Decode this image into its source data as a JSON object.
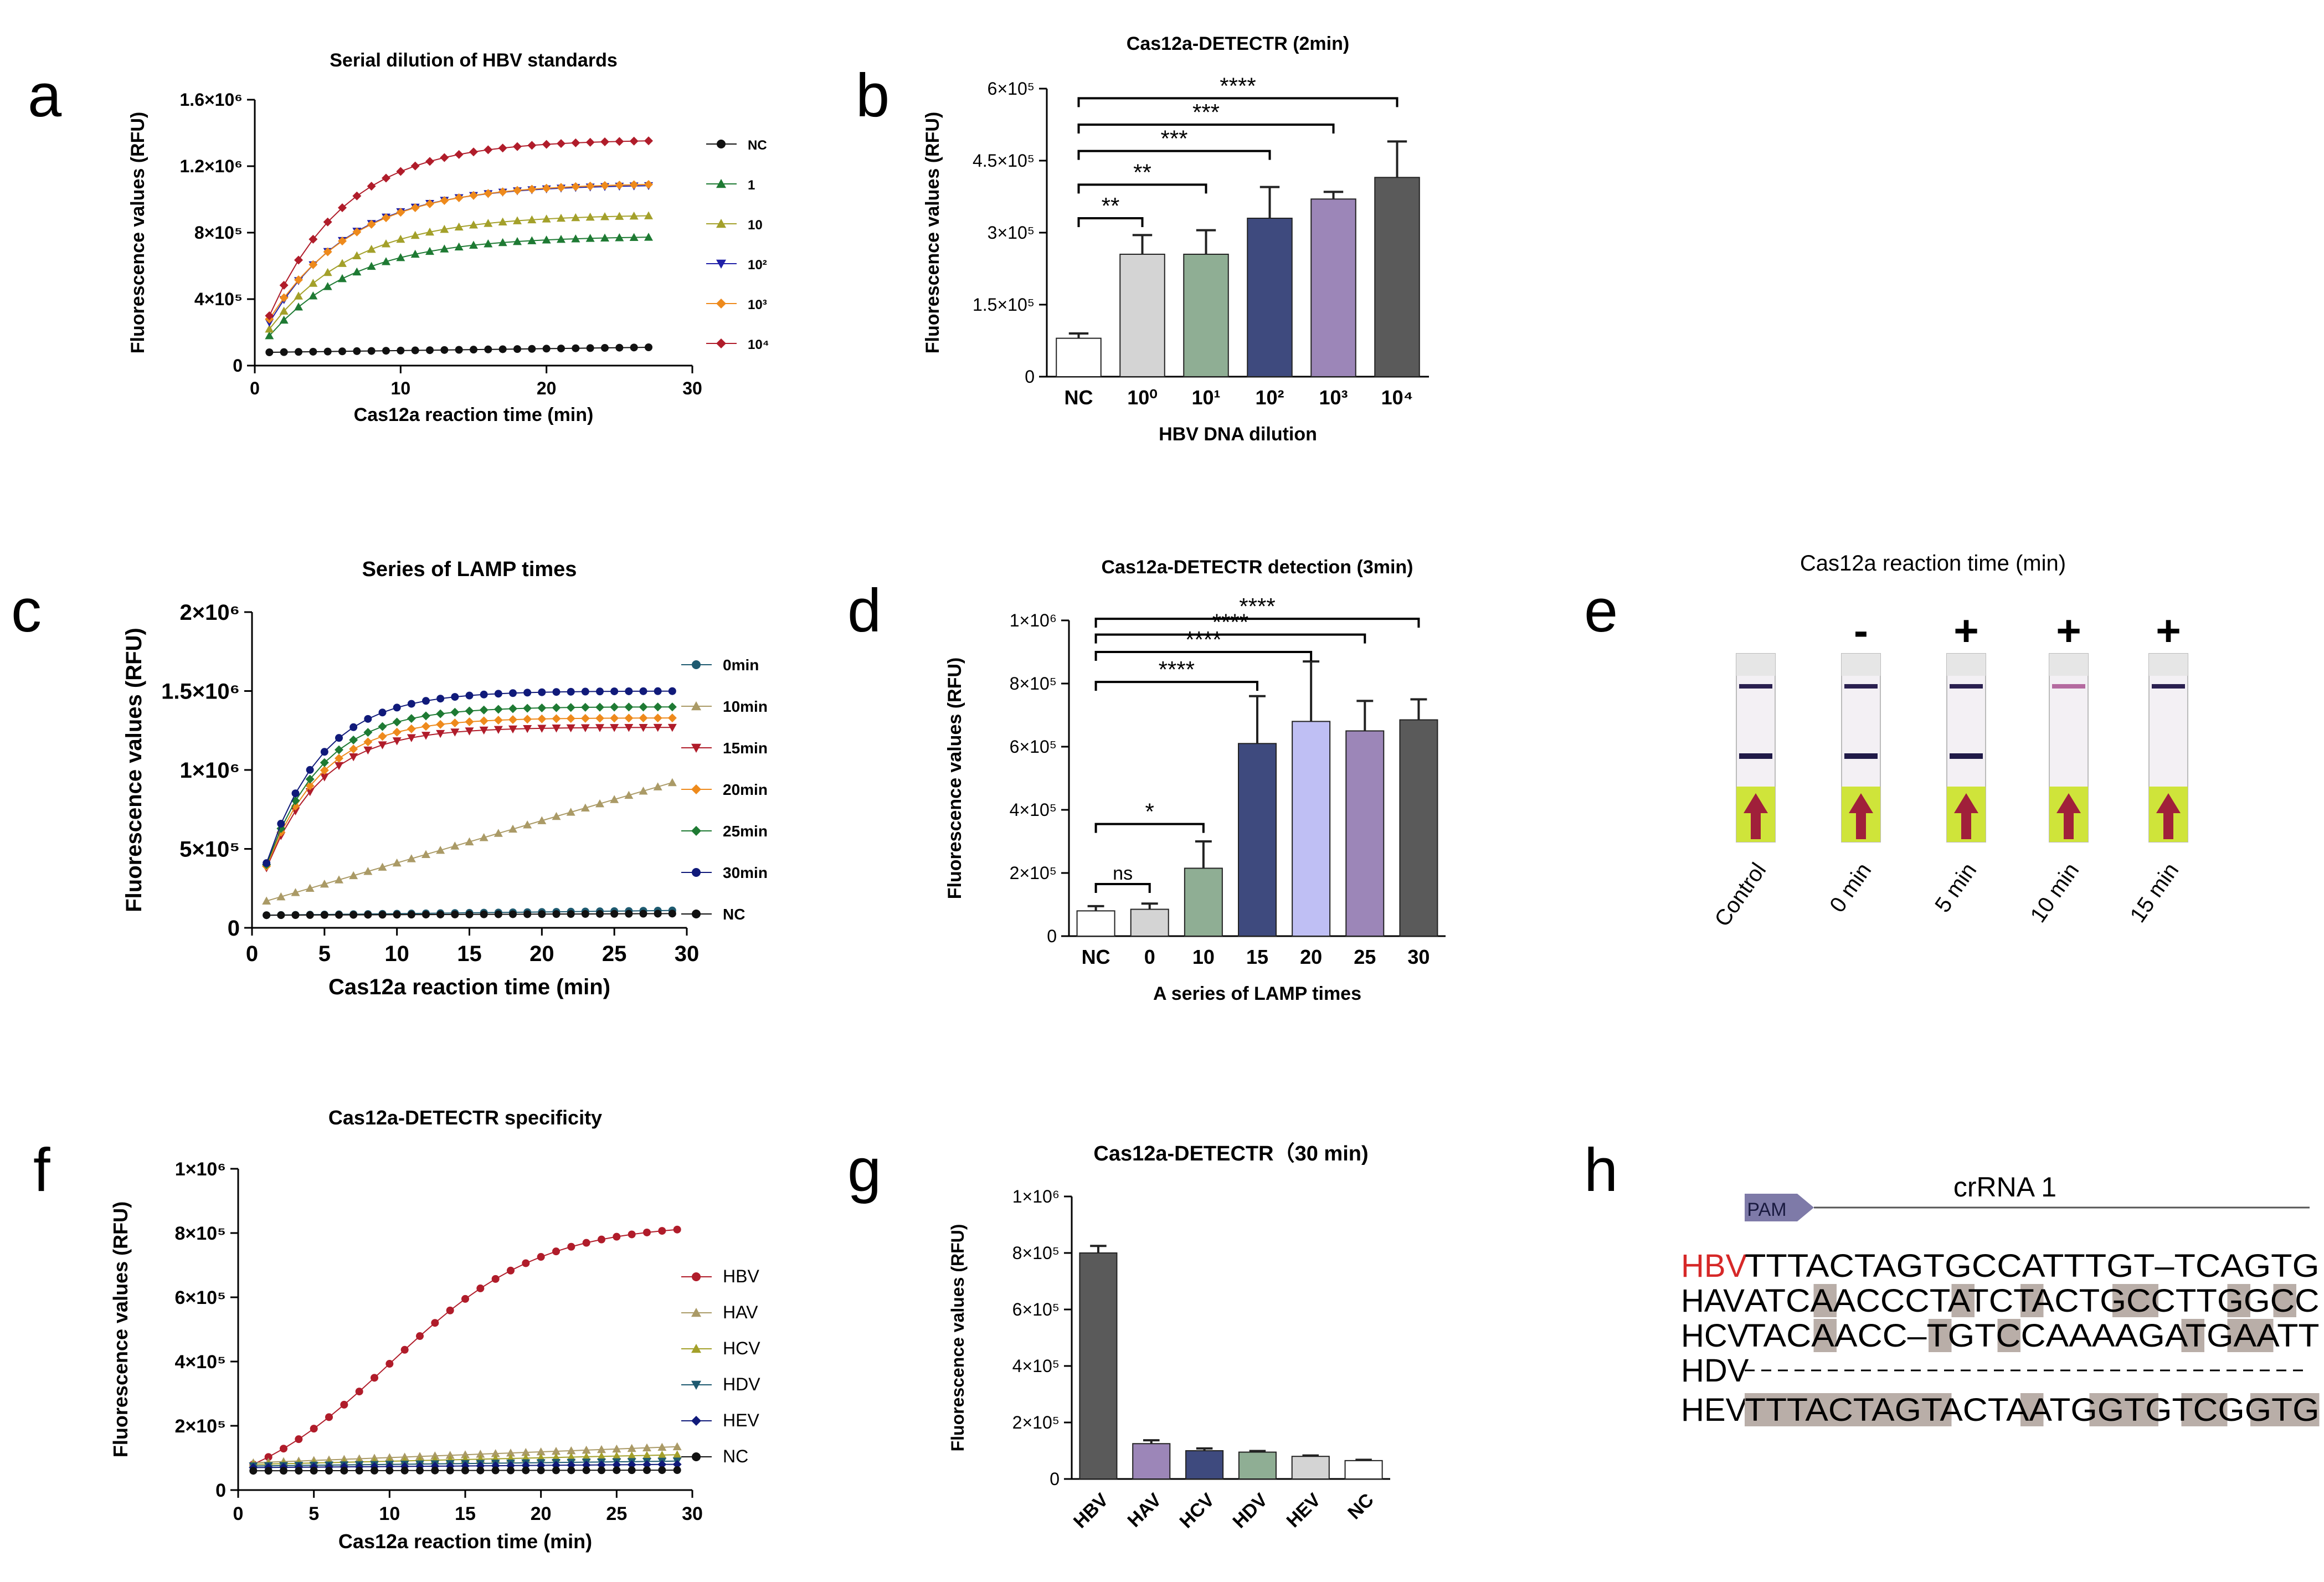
{
  "panel_letters": [
    "a",
    "b",
    "c",
    "d",
    "e",
    "f",
    "g",
    "h"
  ],
  "superscripts": {
    "0": "⁰",
    "1": "¹",
    "2": "²",
    "3": "³",
    "4": "⁴",
    "5": "⁵",
    "6": "⁶"
  },
  "colors": {
    "black": "#111111",
    "green": "#1e7a33",
    "olive": "#a3a02a",
    "blue": "#2020a8",
    "orange": "#ee8a1c",
    "red": "#b01c2a",
    "navy": "#101a7a",
    "teal": "#1e5a70",
    "lgrey": "#d4d4d4",
    "sage": "#8fae94",
    "navyBar": "#3e4a7e",
    "purple": "#9c86b8",
    "dgrey": "#5a5a5a",
    "lav": "#bfbff4",
    "tan": "#aa9a66",
    "mid": "#2a2a6a"
  },
  "chart_data": [
    {
      "id": "a",
      "type": "line",
      "title": "Serial dilution of HBV standards",
      "xlabel": "Cas12a reaction time (min)",
      "ylabel": "Fluorescence values (RFU)",
      "xlim": [
        0,
        30
      ],
      "ylim": [
        0,
        1600000
      ],
      "xticks": [
        0,
        10,
        20,
        30
      ],
      "yticks": [
        0,
        400000,
        800000,
        1200000,
        1600000
      ],
      "ytick_labels": [
        "0",
        "4×10⁵",
        "8×10⁵",
        "1.2×10⁶",
        "1.6×10⁶"
      ],
      "legend_placement": "right",
      "series": [
        {
          "name": "NC",
          "legend": "NC",
          "marker": "circle",
          "color": "black",
          "start": 80000,
          "plateau": 110000,
          "k": 0.0
        },
        {
          "name": "1",
          "legend": "1",
          "marker": "triangle",
          "color": "green",
          "start": 180000,
          "plateau": 780000,
          "k": 0.17
        },
        {
          "name": "10",
          "legend": "10",
          "marker": "triangle",
          "color": "olive",
          "start": 220000,
          "plateau": 910000,
          "k": 0.17
        },
        {
          "name": "10^2",
          "legend": "10²",
          "marker": "triangle-down",
          "color": "blue",
          "start": 260000,
          "plateau": 1090000,
          "k": 0.18
        },
        {
          "name": "10^3",
          "legend": "10³",
          "marker": "diamond",
          "color": "orange",
          "start": 280000,
          "plateau": 1100000,
          "k": 0.17
        },
        {
          "name": "10^4",
          "legend": "10⁴",
          "marker": "diamond",
          "color": "red",
          "start": 300000,
          "plateau": 1360000,
          "k": 0.19
        }
      ]
    },
    {
      "id": "b",
      "type": "bar",
      "title": "Cas12a-DETECTR (2min)",
      "xlabel": "HBV DNA dilution",
      "ylabel": "Fluorescence values (RFU)",
      "ylim": [
        0,
        600000
      ],
      "yticks": [
        0,
        150000,
        300000,
        450000,
        600000
      ],
      "ytick_labels": [
        "0",
        "1.5×10⁵",
        "3×10⁵",
        "4.5×10⁵",
        "6×10⁵"
      ],
      "categories": [
        "NC",
        "10^0",
        "10^1",
        "10^2",
        "10^3",
        "10^4"
      ],
      "category_labels": [
        "NC",
        "10⁰",
        "10¹",
        "10²",
        "10³",
        "10⁴"
      ],
      "values": [
        80000,
        255000,
        255000,
        330000,
        370000,
        415000
      ],
      "errors": [
        10000,
        40000,
        50000,
        65000,
        15000,
        75000
      ],
      "bar_colors": [
        "#ffffff",
        "lgrey",
        "sage",
        "navyBar",
        "purple",
        "dgrey"
      ],
      "significance": [
        {
          "from": 0,
          "to": 1,
          "label": "**",
          "y": 330000
        },
        {
          "from": 0,
          "to": 2,
          "label": "**",
          "y": 400000
        },
        {
          "from": 0,
          "to": 3,
          "label": "***",
          "y": 470000
        },
        {
          "from": 0,
          "to": 4,
          "label": "***",
          "y": 525000
        },
        {
          "from": 0,
          "to": 5,
          "label": "****",
          "y": 580000
        }
      ]
    },
    {
      "id": "c",
      "type": "line",
      "title": "Series of LAMP times",
      "xlabel": "Cas12a reaction time (min)",
      "ylabel": "Fluorescence values (RFU)",
      "xlim": [
        0,
        30
      ],
      "ylim": [
        0,
        2000000
      ],
      "xticks": [
        0,
        5,
        10,
        15,
        20,
        25,
        30
      ],
      "yticks": [
        0,
        500000,
        1000000,
        1500000,
        2000000
      ],
      "ytick_labels": [
        "0",
        "5×10⁵",
        "1×10⁶",
        "1.5×10⁶",
        "2×10⁶"
      ],
      "legend_placement": "right",
      "series": [
        {
          "name": "0min",
          "legend": "0min",
          "marker": "circle",
          "color": "teal",
          "start": 80000,
          "plateau": 110000,
          "k": 0.0
        },
        {
          "name": "10min",
          "legend": "10min",
          "marker": "triangle",
          "color": "tan",
          "start": 170000,
          "plateau": 920000,
          "k": -1
        },
        {
          "name": "15min",
          "legend": "15min",
          "marker": "triangle-down",
          "color": "red",
          "start": 380000,
          "plateau": 1270000,
          "k": 0.26
        },
        {
          "name": "20min",
          "legend": "20min",
          "marker": "diamond",
          "color": "orange",
          "start": 390000,
          "plateau": 1330000,
          "k": 0.26
        },
        {
          "name": "25min",
          "legend": "25min",
          "marker": "diamond",
          "color": "green",
          "start": 400000,
          "plateau": 1400000,
          "k": 0.26
        },
        {
          "name": "30min",
          "legend": "30min",
          "marker": "circle",
          "color": "navy",
          "start": 410000,
          "plateau": 1500000,
          "k": 0.26
        },
        {
          "name": "NC",
          "legend": "NC",
          "marker": "circle",
          "color": "black",
          "start": 80000,
          "plateau": 90000,
          "k": 0.0
        }
      ]
    },
    {
      "id": "d",
      "type": "bar",
      "title": "Cas12a-DETECTR detection (3min)",
      "xlabel": "A series of LAMP times",
      "ylabel": "Fluorescence values (RFU)",
      "ylim": [
        0,
        1000000
      ],
      "yticks": [
        0,
        200000,
        400000,
        600000,
        800000,
        1000000
      ],
      "ytick_labels": [
        "0",
        "2×10⁵",
        "4×10⁵",
        "6×10⁵",
        "8×10⁵",
        "1×10⁶"
      ],
      "categories": [
        "NC",
        "0",
        "10",
        "15",
        "20",
        "25",
        "30"
      ],
      "category_labels": [
        "NC",
        "0",
        "10",
        "15",
        "20",
        "25",
        "30"
      ],
      "values": [
        80000,
        85000,
        215000,
        610000,
        680000,
        650000,
        685000
      ],
      "errors": [
        15000,
        18000,
        85000,
        150000,
        190000,
        95000,
        65000
      ],
      "bar_colors": [
        "#ffffff",
        "lgrey",
        "sage",
        "navyBar",
        "lav",
        "purple",
        "dgrey"
      ],
      "significance": [
        {
          "from": 0,
          "to": 1,
          "label": "ns",
          "y": 165000
        },
        {
          "from": 0,
          "to": 2,
          "label": "*",
          "y": 355000
        },
        {
          "from": 0,
          "to": 3,
          "label": "****",
          "y": 805000
        },
        {
          "from": 0,
          "to": 4,
          "label": "****",
          "y": 900000
        },
        {
          "from": 0,
          "to": 5,
          "label": "****",
          "y": 955000
        },
        {
          "from": 0,
          "to": 6,
          "label": "****",
          "y": 1005000
        }
      ]
    },
    {
      "id": "f",
      "type": "line",
      "title": "Cas12a-DETECTR specificity",
      "xlabel": "Cas12a reaction time (min)",
      "ylabel": "Fluorescence values (RFU)",
      "xlim": [
        0,
        30
      ],
      "ylim": [
        0,
        1000000
      ],
      "xticks": [
        0,
        5,
        10,
        15,
        20,
        25,
        30
      ],
      "yticks": [
        0,
        200000,
        400000,
        600000,
        800000,
        1000000
      ],
      "ytick_labels": [
        "0",
        "2×10⁵",
        "4×10⁵",
        "6×10⁵",
        "8×10⁵",
        "1×10⁶"
      ],
      "legend_placement": "right",
      "series": [
        {
          "name": "HBV",
          "legend": "HBV",
          "marker": "circle",
          "color": "red",
          "start": 80000,
          "plateau": 830000,
          "k": 0.2,
          "mid": 10
        },
        {
          "name": "HAV",
          "legend": "HAV",
          "marker": "triangle",
          "color": "tan",
          "start": 85000,
          "plateau": 135000,
          "k": 0.0
        },
        {
          "name": "HCV",
          "legend": "HCV",
          "marker": "triangle",
          "color": "olive",
          "start": 80000,
          "plateau": 110000,
          "k": 0.0
        },
        {
          "name": "HDV",
          "legend": "HDV",
          "marker": "triangle-down",
          "color": "teal",
          "start": 75000,
          "plateau": 90000,
          "k": 0.0
        },
        {
          "name": "HEV",
          "legend": "HEV",
          "marker": "diamond",
          "color": "navy",
          "start": 70000,
          "plateau": 80000,
          "k": 0.0
        },
        {
          "name": "NC",
          "legend": "NC",
          "marker": "circle",
          "color": "black",
          "start": 60000,
          "plateau": 62000,
          "k": 0.0
        }
      ]
    },
    {
      "id": "g",
      "type": "bar",
      "title": "Cas12a-DETECTR（30 min)",
      "xlabel": "",
      "ylabel": "Fluorescence values (RFU)",
      "ylim": [
        0,
        1000000
      ],
      "yticks": [
        0,
        200000,
        400000,
        600000,
        800000,
        1000000
      ],
      "ytick_labels": [
        "0",
        "2×10⁵",
        "4×10⁵",
        "6×10⁵",
        "8×10⁵",
        "1×10⁶"
      ],
      "categories": [
        "HBV",
        "HAV",
        "HCV",
        "HDV",
        "HEV",
        "NC"
      ],
      "category_labels": [
        "HBV",
        "HAV",
        "HCV",
        "HDV",
        "HEV",
        "NC"
      ],
      "values": [
        800000,
        125000,
        100000,
        95000,
        80000,
        65000
      ],
      "errors": [
        25000,
        12000,
        8000,
        4000,
        3000,
        3000
      ],
      "bar_colors": [
        "dgrey",
        "purple",
        "navyBar",
        "sage",
        "lgrey",
        "#ffffff"
      ],
      "significance": []
    }
  ],
  "panel_e": {
    "title": "Cas12a reaction time (min)",
    "strips": [
      {
        "label": "Control",
        "sign": "",
        "control_band": true,
        "test_band": true
      },
      {
        "label": "0 min",
        "sign": "-",
        "control_band": true,
        "test_band": true
      },
      {
        "label": "5 min",
        "sign": "+",
        "control_band": true,
        "test_band": true
      },
      {
        "label": "10 min",
        "sign": "+",
        "control_band": true,
        "test_band": false
      },
      {
        "label": "15 min",
        "sign": "+",
        "control_band": true,
        "test_band": false
      }
    ]
  },
  "panel_h": {
    "pam_label": "PAM",
    "crrna_label": "crRNA 1",
    "rows": [
      {
        "name": "HBV",
        "seq": "TTTACTAGTGCCATTTGT–TCAGTG",
        "name_color": "#d62828",
        "shaded": []
      },
      {
        "name": "HAV",
        "seq": "ATCAACCCTATCTACTGCCTTGGCC",
        "name_color": "#000000",
        "shaded": [
          3,
          9,
          12,
          16,
          17,
          21,
          23
        ]
      },
      {
        "name": "HCV",
        "seq": "TACAACC–TGTCCAAAAGATGAATT",
        "name_color": "#000000",
        "shaded": [
          3,
          8,
          11,
          19,
          21,
          22
        ]
      },
      {
        "name": "HDV",
        "seq": "--------------------------",
        "name_color": "#000000",
        "shaded": []
      },
      {
        "name": "HEV",
        "seq": "TTTACTAGTACTAATGGTGTCGGTG",
        "name_color": "#000000",
        "shaded": [
          0,
          1,
          2,
          3,
          4,
          5,
          6,
          7,
          8,
          12,
          15,
          16,
          17,
          19,
          20,
          22,
          23,
          24
        ]
      }
    ]
  }
}
